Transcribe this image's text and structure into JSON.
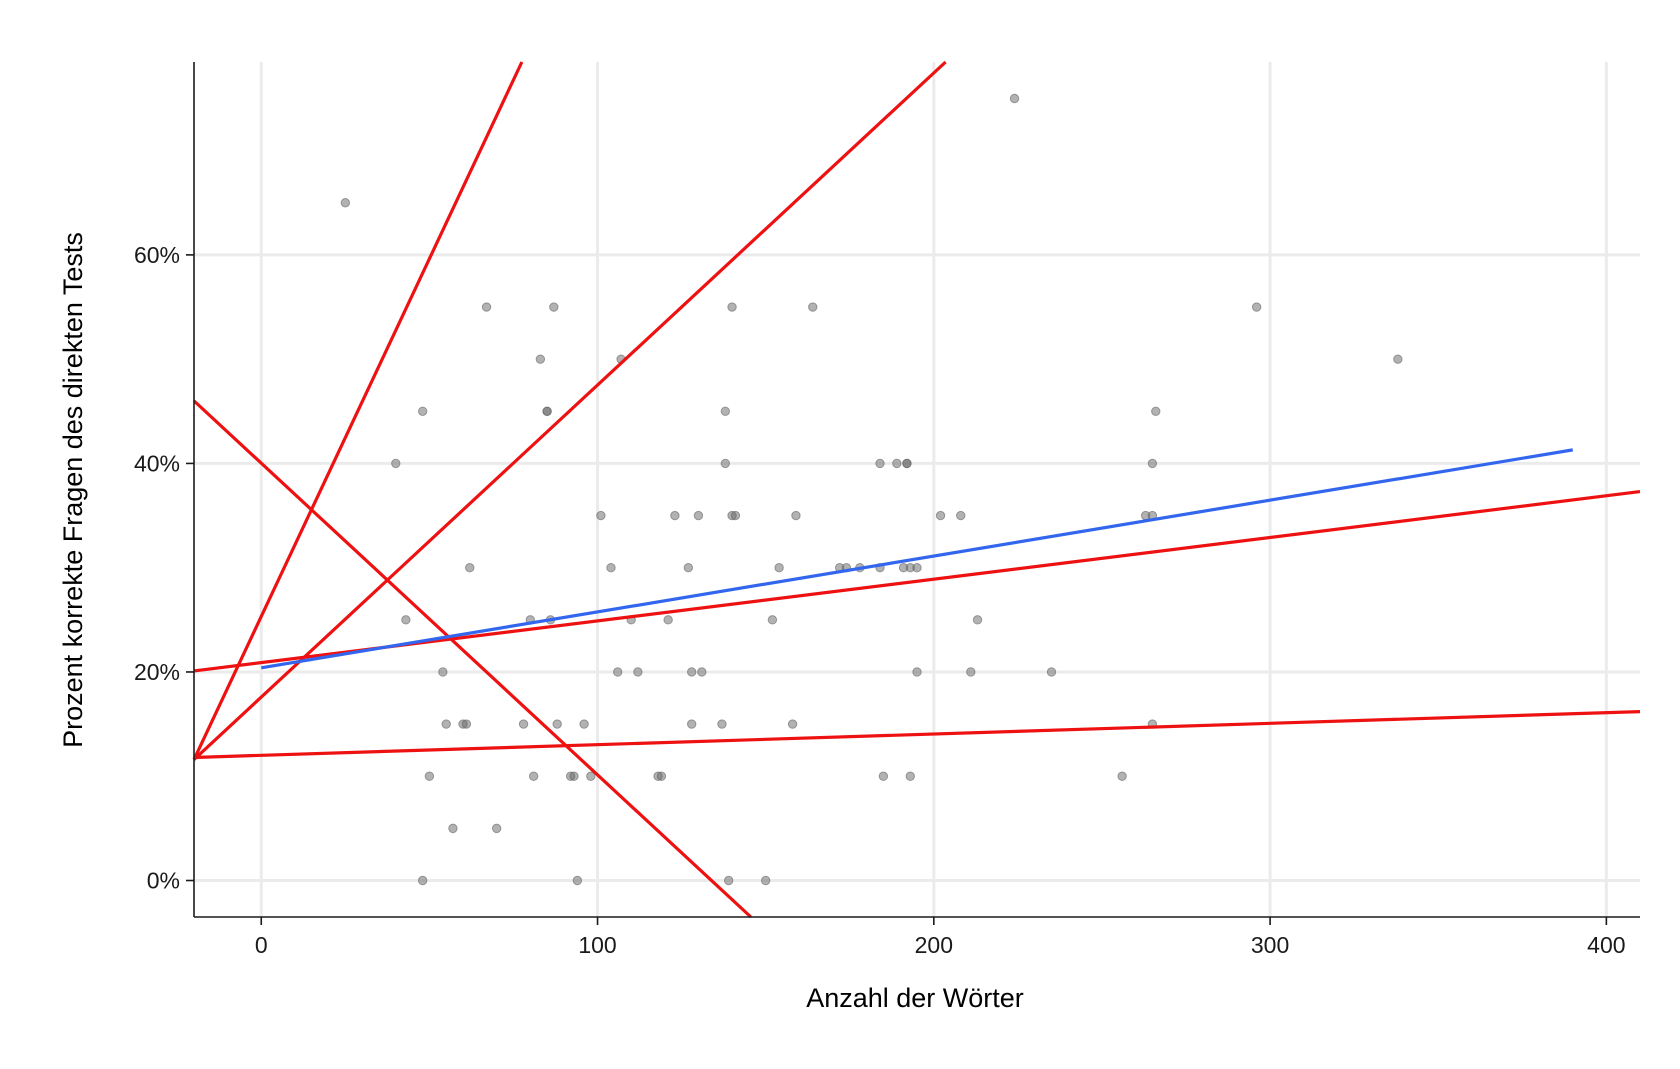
{
  "chart_data": {
    "type": "scatter",
    "title": "",
    "xlabel": "Anzahl der Wörter",
    "ylabel": "Prozent korrekte Fragen des direkten Tests",
    "xlim": [
      -20,
      410
    ],
    "ylim": [
      -3.5,
      78.5
    ],
    "x_ticks": [
      0,
      100,
      200,
      300,
      400
    ],
    "x_tick_labels": [
      "0",
      "100",
      "200",
      "300",
      "400"
    ],
    "y_ticks": [
      0,
      20,
      40,
      60
    ],
    "y_tick_labels": [
      "0%",
      "20%",
      "40%",
      "60%"
    ],
    "grid": true,
    "legend": "none",
    "colors": {
      "points": "#666666",
      "fit_line": "#3366ee",
      "reference_lines": "#ee1111",
      "grid": "#ebebeb",
      "axis": "#1a1a1a"
    },
    "points": [
      {
        "x": 25,
        "y": 65
      },
      {
        "x": 224,
        "y": 75
      },
      {
        "x": 67,
        "y": 55
      },
      {
        "x": 87,
        "y": 55
      },
      {
        "x": 140,
        "y": 55
      },
      {
        "x": 164,
        "y": 55
      },
      {
        "x": 296,
        "y": 55
      },
      {
        "x": 83,
        "y": 50
      },
      {
        "x": 107,
        "y": 50
      },
      {
        "x": 338,
        "y": 50
      },
      {
        "x": 48,
        "y": 45
      },
      {
        "x": 85,
        "y": 45
      },
      {
        "x": 85,
        "y": 45
      },
      {
        "x": 138,
        "y": 45
      },
      {
        "x": 266,
        "y": 45
      },
      {
        "x": 40,
        "y": 40
      },
      {
        "x": 138,
        "y": 40
      },
      {
        "x": 184,
        "y": 40
      },
      {
        "x": 189,
        "y": 40
      },
      {
        "x": 192,
        "y": 40
      },
      {
        "x": 192,
        "y": 40
      },
      {
        "x": 265,
        "y": 40
      },
      {
        "x": 101,
        "y": 35
      },
      {
        "x": 123,
        "y": 35
      },
      {
        "x": 130,
        "y": 35
      },
      {
        "x": 140,
        "y": 35
      },
      {
        "x": 141,
        "y": 35
      },
      {
        "x": 159,
        "y": 35
      },
      {
        "x": 202,
        "y": 35
      },
      {
        "x": 208,
        "y": 35
      },
      {
        "x": 263,
        "y": 35
      },
      {
        "x": 265,
        "y": 35
      },
      {
        "x": 62,
        "y": 30
      },
      {
        "x": 104,
        "y": 30
      },
      {
        "x": 127,
        "y": 30
      },
      {
        "x": 154,
        "y": 30
      },
      {
        "x": 172,
        "y": 30
      },
      {
        "x": 174,
        "y": 30
      },
      {
        "x": 178,
        "y": 30
      },
      {
        "x": 184,
        "y": 30
      },
      {
        "x": 191,
        "y": 30
      },
      {
        "x": 193,
        "y": 30
      },
      {
        "x": 195,
        "y": 30
      },
      {
        "x": 43,
        "y": 25
      },
      {
        "x": 80,
        "y": 25
      },
      {
        "x": 86,
        "y": 25
      },
      {
        "x": 110,
        "y": 25
      },
      {
        "x": 121,
        "y": 25
      },
      {
        "x": 152,
        "y": 25
      },
      {
        "x": 213,
        "y": 25
      },
      {
        "x": 54,
        "y": 20
      },
      {
        "x": 106,
        "y": 20
      },
      {
        "x": 112,
        "y": 20
      },
      {
        "x": 128,
        "y": 20
      },
      {
        "x": 131,
        "y": 20
      },
      {
        "x": 195,
        "y": 20
      },
      {
        "x": 211,
        "y": 20
      },
      {
        "x": 235,
        "y": 20
      },
      {
        "x": 55,
        "y": 15
      },
      {
        "x": 60,
        "y": 15
      },
      {
        "x": 61,
        "y": 15
      },
      {
        "x": 78,
        "y": 15
      },
      {
        "x": 88,
        "y": 15
      },
      {
        "x": 96,
        "y": 15
      },
      {
        "x": 128,
        "y": 15
      },
      {
        "x": 137,
        "y": 15
      },
      {
        "x": 158,
        "y": 15
      },
      {
        "x": 265,
        "y": 15
      },
      {
        "x": 50,
        "y": 10
      },
      {
        "x": 81,
        "y": 10
      },
      {
        "x": 92,
        "y": 10
      },
      {
        "x": 93,
        "y": 10
      },
      {
        "x": 98,
        "y": 10
      },
      {
        "x": 118,
        "y": 10
      },
      {
        "x": 119,
        "y": 10
      },
      {
        "x": 185,
        "y": 10
      },
      {
        "x": 193,
        "y": 10
      },
      {
        "x": 256,
        "y": 10
      },
      {
        "x": 57,
        "y": 5
      },
      {
        "x": 70,
        "y": 5
      },
      {
        "x": 48,
        "y": 0
      },
      {
        "x": 94,
        "y": 0
      },
      {
        "x": 139,
        "y": 0
      },
      {
        "x": 150,
        "y": 0
      }
    ],
    "fit_line": {
      "x": [
        0,
        390
      ],
      "y": [
        20.4,
        41.3
      ]
    },
    "reference_lines": [
      {
        "x": [
          -20,
          77.5
        ],
        "y": [
          11.6,
          78.5
        ]
      },
      {
        "x": [
          -20,
          203.5
        ],
        "y": [
          11.6,
          78.5
        ]
      },
      {
        "x": [
          -20,
          145.6
        ],
        "y": [
          46.0,
          -3.5
        ]
      },
      {
        "x": [
          -20,
          410
        ],
        "y": [
          20.1,
          37.3
        ]
      },
      {
        "x": [
          -20,
          410
        ],
        "y": [
          11.8,
          16.2
        ]
      }
    ]
  }
}
